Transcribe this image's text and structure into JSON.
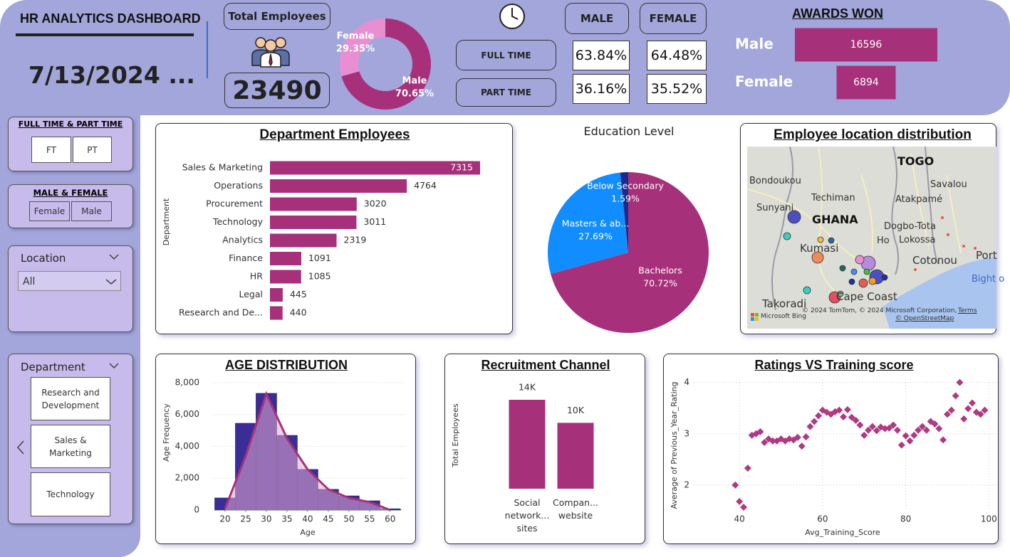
{
  "header": {
    "title": "HR ANALYTICS DASHBOARD",
    "date": "7/13/2024 ..."
  },
  "kpi": {
    "label": "Total Employees",
    "value": 23490
  },
  "employment_table": {
    "columns": [
      "MALE",
      "FEMALE"
    ],
    "rows": [
      {
        "label": "FULL TIME",
        "cells": [
          "63.84%",
          "64.48%"
        ]
      },
      {
        "label": "PART TIME",
        "cells": [
          "36.16%",
          "35.52%"
        ]
      }
    ]
  },
  "slicers": [
    {
      "title": "FULL TIME & PART TIME",
      "options": [
        "FT",
        "PT"
      ]
    },
    {
      "title": "MALE & FEMALE",
      "options": [
        "Female",
        "Male"
      ]
    },
    {
      "title": "Location",
      "selected": "All"
    },
    {
      "title": "Department",
      "options": [
        "Research and Development",
        "Sales & Marketing",
        "Technology"
      ]
    }
  ],
  "map": {
    "title": "Employee location distribution",
    "places": [
      "Bondoukou",
      "TOGO",
      "Savalou",
      "Techiman",
      "Atakpamé",
      "Sunyani",
      "GHANA",
      "Dogbo-Tota",
      "Ho",
      "Lokossa",
      "Kumasi",
      "Cotonou",
      "Port",
      "Bight o",
      "Takoradi",
      "Cape Coast"
    ],
    "attribution": "© 2024 TomTom, © 2024 Microsoft Corporation,",
    "terms": "Terms",
    "osm": "© OpenStreetMap",
    "brand": "Microsoft Bing"
  },
  "chart_data": [
    {
      "type": "pie",
      "donut": true,
      "categories": [
        "Male",
        "Female"
      ],
      "values": [
        70.65,
        29.35
      ],
      "value_labels": [
        "70.65%",
        "29.35%"
      ],
      "colors": [
        "#a6317a",
        "#e78fd0"
      ]
    },
    {
      "type": "bar",
      "orientation": "horizontal",
      "title": "AWARDS WON",
      "categories": [
        "Male",
        "Female"
      ],
      "values": [
        16596,
        6894
      ],
      "color": "#a6317a"
    },
    {
      "type": "bar",
      "orientation": "horizontal",
      "title": "Department Employees",
      "ylabel": "Department",
      "categories": [
        "Sales & Marketing",
        "Operations",
        "Procurement",
        "Technology",
        "Analytics",
        "Finance",
        "HR",
        "Legal",
        "Research and De..."
      ],
      "values": [
        7315,
        4764,
        3020,
        3011,
        2319,
        1091,
        1085,
        445,
        440
      ],
      "color": "#a6317a"
    },
    {
      "type": "pie",
      "title": "Education Level",
      "categories": [
        "Bachelors",
        "Masters & ab...",
        "Below Secondary"
      ],
      "values": [
        70.72,
        27.69,
        1.59
      ],
      "value_labels": [
        "70.72%",
        "27.69%",
        "1.59%"
      ],
      "colors": [
        "#a6317a",
        "#118dff",
        "#1c2a8c"
      ]
    },
    {
      "type": "histogram",
      "title": "AGE DISTRIBUTION",
      "xlabel": "Age",
      "ylabel": "Age Frequency",
      "bins": [
        17.5,
        22.5,
        27.5,
        32.5,
        37.5,
        42.5,
        47.5,
        52.5,
        57.5,
        62.5
      ],
      "values": [
        760,
        5450,
        7330,
        4690,
        2550,
        1300,
        890,
        580,
        80
      ],
      "color": "#3b2d97",
      "line": {
        "x": [
          20,
          25,
          30,
          35,
          40,
          45,
          50,
          55,
          60
        ],
        "values": [
          100,
          3400,
          7300,
          4500,
          2550,
          1300,
          760,
          500,
          0
        ],
        "color": "#a6317a",
        "fill": "#e3a7d0"
      },
      "xlim": [
        17,
        64
      ],
      "ylim": [
        0,
        8400
      ],
      "xticks": [
        20,
        25,
        30,
        35,
        40,
        45,
        50,
        55,
        60
      ],
      "yticks": [
        0,
        {
          "value": 2000,
          "label": "2,000"
        },
        {
          "value": 4000,
          "label": "4,000"
        },
        {
          "value": 6000,
          "label": "6,000"
        },
        {
          "value": 8000,
          "label": "8,000"
        }
      ],
      "grid": true
    },
    {
      "type": "bar",
      "orientation": "vertical",
      "title": "Recruitment Channel",
      "ylabel": "Total Employees",
      "categories": [
        "Social network... sites",
        "Compan... website"
      ],
      "values": [
        13500,
        10000
      ],
      "value_labels": [
        "14K",
        "10K"
      ],
      "color": "#a6317a"
    },
    {
      "type": "scatter",
      "title": "Ratings VS Training score",
      "xlabel": "Avg_Training_Score",
      "ylabel": "Average of Previous_Year_Rating",
      "x": [
        39,
        40,
        41,
        42,
        43,
        44,
        45,
        46,
        47,
        48,
        49,
        50,
        51,
        52,
        53,
        54,
        55,
        56,
        57,
        58,
        59,
        60,
        61,
        62,
        63,
        64,
        65,
        66,
        67,
        68,
        69,
        70,
        71,
        72,
        73,
        74,
        75,
        76,
        77,
        78,
        79,
        80,
        81,
        82,
        83,
        84,
        85,
        86,
        87,
        88,
        89,
        90,
        91,
        92,
        93,
        94,
        95,
        96,
        97,
        98,
        99
      ],
      "values": [
        2.0,
        1.68,
        1.57,
        2.33,
        2.97,
        3.0,
        3.04,
        2.83,
        2.9,
        2.86,
        2.86,
        2.9,
        2.86,
        2.9,
        2.88,
        2.93,
        2.76,
        2.94,
        3.14,
        3.24,
        3.35,
        3.46,
        3.42,
        3.38,
        3.43,
        3.46,
        3.33,
        3.47,
        3.32,
        3.26,
        3.17,
        2.97,
        3.07,
        3.14,
        3.06,
        3.13,
        3.1,
        3.11,
        3.17,
        3.07,
        2.78,
        2.96,
        2.86,
        2.97,
        3.07,
        3.14,
        3.07,
        3.24,
        3.19,
        3.1,
        2.88,
        3.38,
        3.46,
        3.74,
        4.0,
        3.29,
        3.49,
        3.6,
        3.42,
        3.38,
        3.46
      ],
      "color": "#b03a82",
      "xlim": [
        29,
        102
      ],
      "ylim": [
        1.5,
        4.05
      ],
      "xticks": [
        40,
        60,
        80,
        100
      ],
      "yticks": [
        2,
        3,
        4
      ],
      "grid": true
    }
  ]
}
